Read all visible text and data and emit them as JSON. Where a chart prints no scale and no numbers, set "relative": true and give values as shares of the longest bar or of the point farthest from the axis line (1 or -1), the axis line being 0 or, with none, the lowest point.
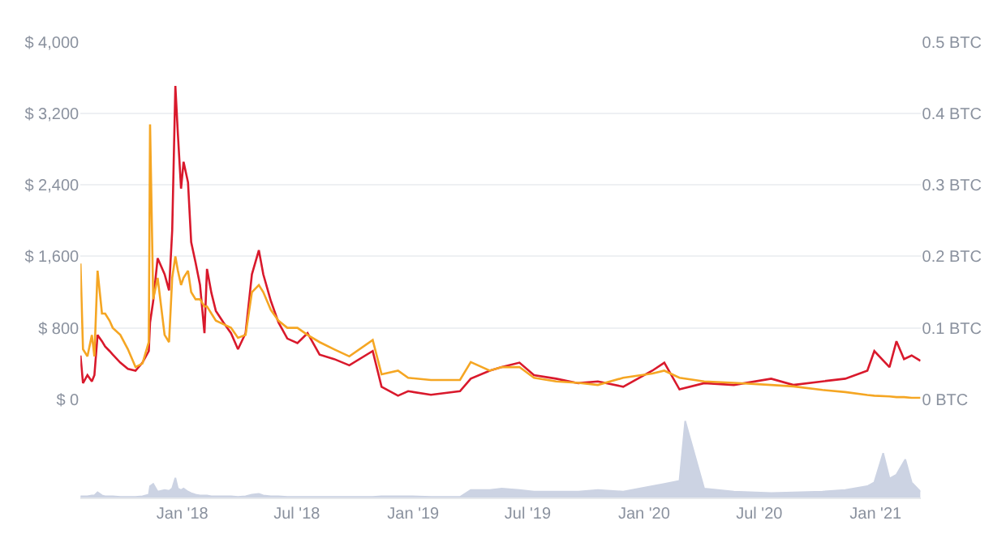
{
  "chart_data": [
    {
      "type": "line",
      "x": [
        "2017-07-24",
        "2017-07-28",
        "2017-08-04",
        "2017-08-11",
        "2017-08-15",
        "2017-08-20",
        "2017-08-27",
        "2017-09-01",
        "2017-09-08",
        "2017-09-13",
        "2017-09-25",
        "2017-10-07",
        "2017-10-19",
        "2017-10-30",
        "2017-11-09",
        "2017-11-11",
        "2017-11-16",
        "2017-11-23",
        "2017-12-04",
        "2017-12-11",
        "2017-12-16",
        "2017-12-21",
        "2017-12-25",
        "2017-12-30",
        "2018-01-03",
        "2018-01-10",
        "2018-01-15",
        "2018-01-22",
        "2018-01-29",
        "2018-02-05",
        "2018-02-09",
        "2018-02-16",
        "2018-02-23",
        "2018-03-07",
        "2018-03-19",
        "2018-03-30",
        "2018-04-11",
        "2018-04-21",
        "2018-05-02",
        "2018-05-09",
        "2018-05-21",
        "2018-06-02",
        "2018-06-16",
        "2018-07-02",
        "2018-07-18",
        "2018-08-06",
        "2018-08-29",
        "2018-09-22",
        "2018-10-29",
        "2018-11-12",
        "2018-12-08",
        "2018-12-24",
        "2019-01-29",
        "2019-03-16",
        "2019-04-02",
        "2019-05-02",
        "2019-05-21",
        "2019-06-18",
        "2019-07-11",
        "2019-08-15",
        "2019-09-19",
        "2019-10-20",
        "2019-11-29",
        "2020-01-14",
        "2020-02-02",
        "2020-02-26",
        "2020-04-05",
        "2020-05-22",
        "2020-07-20",
        "2020-08-24",
        "2020-10-09",
        "2020-11-14",
        "2020-12-19",
        "2020-12-30",
        "2021-01-23",
        "2021-02-03",
        "2021-02-15",
        "2021-02-27",
        "2021-03-13"
      ],
      "series": [
        {
          "color": "#d9192c",
          "values": [
            490,
            180,
            270,
            200,
            270,
            720,
            650,
            590,
            540,
            500,
            410,
            340,
            320,
            410,
            540,
            860,
            1100,
            1580,
            1400,
            1220,
            1890,
            3510,
            2970,
            2360,
            2660,
            2430,
            1760,
            1530,
            1280,
            740,
            1460,
            1190,
            990,
            860,
            740,
            560,
            740,
            1400,
            1670,
            1400,
            1100,
            860,
            680,
            630,
            740,
            500,
            450,
            380,
            540,
            140,
            40,
            90,
            50,
            90,
            230,
            320,
            360,
            410,
            270,
            230,
            180,
            200,
            140,
            320,
            410,
            110,
            180,
            160,
            230,
            160,
            200,
            230,
            320,
            540,
            360,
            650,
            450,
            490,
            430
          ]
        },
        {
          "color": "#f5a623",
          "axis": "y2",
          "values": [
            0.19,
            0.07,
            0.06,
            0.09,
            0.06,
            0.18,
            0.12,
            0.12,
            0.11,
            0.1,
            0.09,
            0.07,
            0.045,
            0.05,
            0.08,
            0.385,
            0.14,
            0.17,
            0.09,
            0.08,
            0.17,
            0.2,
            0.18,
            0.16,
            0.17,
            0.18,
            0.15,
            0.14,
            0.14,
            0.13,
            0.13,
            0.12,
            0.11,
            0.105,
            0.1,
            0.086,
            0.09,
            0.15,
            0.16,
            0.15,
            0.125,
            0.11,
            0.1,
            0.1,
            0.09,
            0.08,
            0.07,
            0.06,
            0.083,
            0.035,
            0.04,
            0.03,
            0.027,
            0.027,
            0.052,
            0.04,
            0.045,
            0.045,
            0.03,
            0.025,
            0.023,
            0.02,
            0.03,
            0.036,
            0.04,
            0.03,
            0.025,
            0.023,
            0.02,
            0.018,
            0.013,
            0.01,
            0.006,
            0.005,
            0.004,
            0.003,
            0.003,
            0.002,
            0.002
          ]
        }
      ],
      "xlim": [
        "2017-07-24",
        "2021-03-13"
      ],
      "ylim": [
        0,
        4000
      ],
      "yticks": [
        {
          "value": 0,
          "label": "$ 0"
        },
        {
          "value": 800,
          "label": "$ 800"
        },
        {
          "value": 1600,
          "label": "$ 1,600"
        },
        {
          "value": 2400,
          "label": "$ 2,400"
        },
        {
          "value": 3200,
          "label": "$ 3,200"
        },
        {
          "value": 4000,
          "label": "$ 4,000"
        }
      ],
      "y2lim": [
        0,
        0.5
      ],
      "y2ticks": [
        {
          "value": 0,
          "label": "0 BTC"
        },
        {
          "value": 0.1,
          "label": "0.1 BTC"
        },
        {
          "value": 0.2,
          "label": "0.2 BTC"
        },
        {
          "value": 0.3,
          "label": "0.3 BTC"
        },
        {
          "value": 0.4,
          "label": "0.4 BTC"
        },
        {
          "value": 0.5,
          "label": "0.5 BTC"
        }
      ],
      "grid": "y",
      "tick_labels": "y"
    },
    {
      "type": "area",
      "relative": true,
      "color": "#ccd3e3",
      "x": [
        "2017-07-24",
        "2017-07-28",
        "2017-08-04",
        "2017-08-11",
        "2017-08-15",
        "2017-08-20",
        "2017-08-27",
        "2017-09-01",
        "2017-09-08",
        "2017-09-13",
        "2017-09-25",
        "2017-10-07",
        "2017-10-19",
        "2017-10-30",
        "2017-11-09",
        "2017-11-11",
        "2017-11-16",
        "2017-11-23",
        "2017-12-04",
        "2017-12-11",
        "2017-12-16",
        "2017-12-21",
        "2017-12-25",
        "2017-12-30",
        "2018-01-03",
        "2018-01-10",
        "2018-01-15",
        "2018-01-22",
        "2018-01-29",
        "2018-02-05",
        "2018-02-09",
        "2018-02-16",
        "2018-02-23",
        "2018-03-07",
        "2018-03-19",
        "2018-03-30",
        "2018-04-11",
        "2018-04-21",
        "2018-05-02",
        "2018-05-09",
        "2018-05-21",
        "2018-06-02",
        "2018-06-16",
        "2018-07-02",
        "2018-07-18",
        "2018-08-06",
        "2018-08-29",
        "2018-09-22",
        "2018-10-29",
        "2018-11-12",
        "2018-12-08",
        "2018-12-24",
        "2019-01-29",
        "2019-03-16",
        "2019-04-02",
        "2019-05-02",
        "2019-05-21",
        "2019-06-18",
        "2019-07-11",
        "2019-08-15",
        "2019-09-19",
        "2019-10-20",
        "2019-11-29",
        "2020-01-14",
        "2020-02-02",
        "2020-02-26",
        "2020-03-06",
        "2020-04-05",
        "2020-05-22",
        "2020-07-20",
        "2020-08-24",
        "2020-10-09",
        "2020-11-14",
        "2020-12-19",
        "2020-12-30",
        "2021-01-13",
        "2021-01-23",
        "2021-02-03",
        "2021-02-17",
        "2021-02-27",
        "2021-03-13"
      ],
      "values": [
        0.02,
        0.02,
        0.02,
        0.03,
        0.03,
        0.07,
        0.03,
        0.02,
        0.02,
        0.02,
        0.01,
        0.01,
        0.01,
        0.02,
        0.04,
        0.15,
        0.18,
        0.08,
        0.1,
        0.09,
        0.12,
        0.26,
        0.12,
        0.1,
        0.12,
        0.08,
        0.06,
        0.04,
        0.03,
        0.03,
        0.03,
        0.02,
        0.02,
        0.02,
        0.02,
        0.01,
        0.02,
        0.04,
        0.05,
        0.03,
        0.02,
        0.02,
        0.01,
        0.01,
        0.01,
        0.01,
        0.01,
        0.01,
        0.01,
        0.02,
        0.02,
        0.02,
        0.01,
        0.01,
        0.1,
        0.1,
        0.12,
        0.1,
        0.08,
        0.08,
        0.08,
        0.1,
        0.08,
        0.15,
        0.18,
        0.22,
        1,
        0.12,
        0.08,
        0.06,
        0.07,
        0.08,
        0.1,
        0.15,
        0.2,
        0.58,
        0.25,
        0.3,
        0.5,
        0.2,
        0.08
      ],
      "xlim": [
        "2017-07-24",
        "2021-03-13"
      ],
      "xticks": [
        {
          "value": "2018-01-01",
          "label": "Jan '18"
        },
        {
          "value": "2018-07-01",
          "label": "Jul '18"
        },
        {
          "value": "2019-01-01",
          "label": "Jan '19"
        },
        {
          "value": "2019-07-01",
          "label": "Jul '19"
        },
        {
          "value": "2020-01-01",
          "label": "Jan '20"
        },
        {
          "value": "2020-07-01",
          "label": "Jul '20"
        },
        {
          "value": "2021-01-01",
          "label": "Jan '21"
        }
      ],
      "tick_labels": "x"
    }
  ]
}
